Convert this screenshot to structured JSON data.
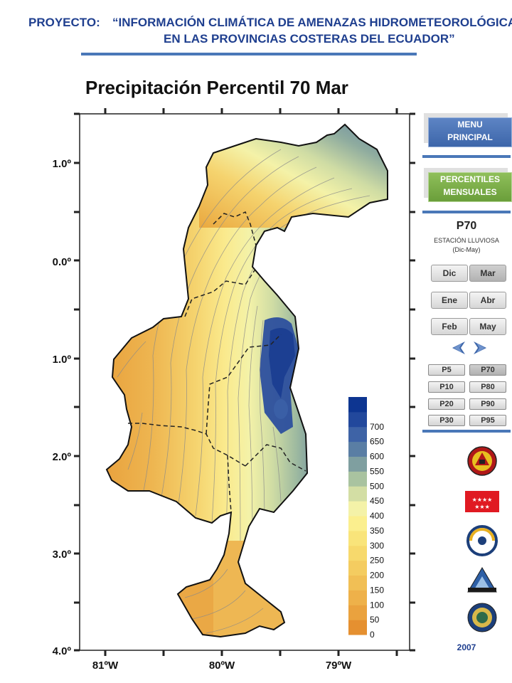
{
  "header": {
    "label": "PROYECTO:",
    "title_line1": "“INFORMACIÓN CLIMÁTICA DE AMENAZAS HIDROMETEOROLÓGICAS",
    "title_line2": "EN LAS PROVINCIAS COSTERAS DEL ECUADOR”"
  },
  "map": {
    "title": "Precipitación Percentil 70 Mar",
    "lat_labels": [
      "1.0º",
      "0.0º",
      "1.0º",
      "2.0º",
      "3.0º",
      "4.0º"
    ],
    "lon_labels": [
      "81ºW",
      "80ºW",
      "79ºW"
    ],
    "legend": {
      "values": [
        "0",
        "50",
        "100",
        "150",
        "200",
        "250",
        "300",
        "350",
        "400",
        "450",
        "500",
        "550",
        "600",
        "650",
        "700"
      ],
      "colors": [
        "#e59030",
        "#eaa23e",
        "#eeb14a",
        "#f1bf55",
        "#f4cc60",
        "#f7d96c",
        "#f9e47a",
        "#fbef8e",
        "#f4f2a8",
        "#d3dea4",
        "#a9c3a0",
        "#7f9fa0",
        "#5a7ea4",
        "#3e63a6",
        "#22489c",
        "#0d3591"
      ]
    }
  },
  "sidebar": {
    "menu_label_1": "MENU",
    "menu_label_2": "PRINCIPAL",
    "percentiles_label_1": "PERCENTILES",
    "percentiles_label_2": "MENSUALES",
    "section_title": "P70",
    "section_subtitle": "ESTACIÓN LLUVIOSA",
    "section_period": "(Dic-May)",
    "months": [
      "Dic",
      "Mar",
      "Ene",
      "Abr",
      "Feb",
      "May"
    ],
    "active_month": "Mar",
    "percentiles": [
      "P5",
      "P70",
      "P10",
      "P80",
      "P20",
      "P90",
      "P30",
      "P95"
    ],
    "active_percentile": "P70",
    "year": "2007",
    "logo_icons": [
      "emergency-shield-icon",
      "star-flag-icon",
      "circular-seal-icon",
      "mountain-triangle-icon",
      "round-emblem-icon"
    ]
  }
}
